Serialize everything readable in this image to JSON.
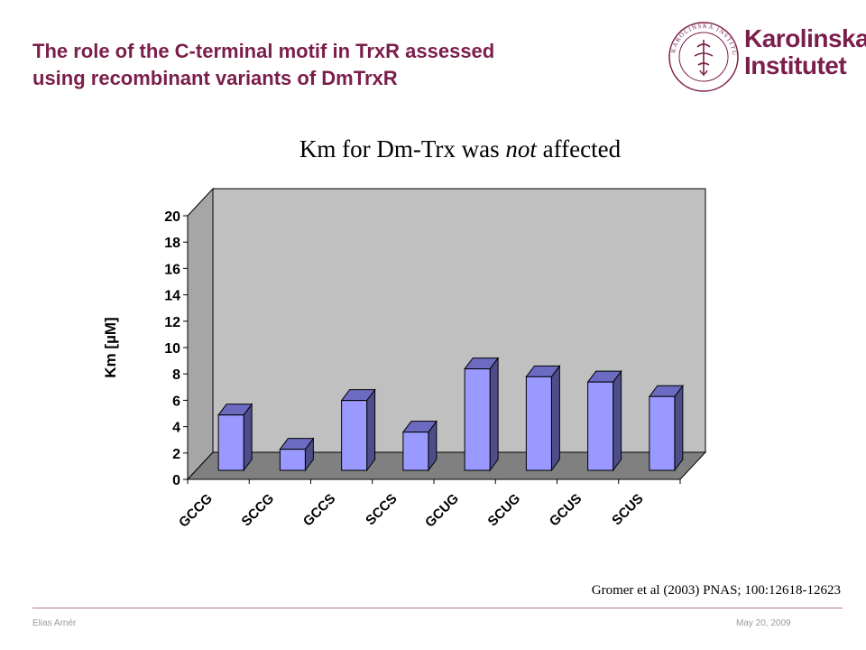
{
  "header": {
    "title_line1": "The role of the C-terminal motif in TrxR assessed",
    "title_line2": "using recombinant variants of DmTrxR"
  },
  "logo": {
    "name_line1": "Karolinska",
    "name_line2": "Institutet",
    "seal_text": "KAROLINSKA INSTITUTET · ANNO 1810",
    "color": "#7a1e4b"
  },
  "slide": {
    "subtitle_prefix": "Km for Dm-Trx was ",
    "subtitle_emph": "not",
    "subtitle_suffix": " affected"
  },
  "chart_data": {
    "type": "bar",
    "style": "3d",
    "categories": [
      "GCCG",
      "SCCG",
      "GCCS",
      "SCCS",
      "GCUG",
      "SCUG",
      "GCUS",
      "SCUS"
    ],
    "values": [
      4.2,
      1.6,
      5.3,
      2.9,
      7.7,
      7.1,
      6.7,
      5.6
    ],
    "ylabel": "Km [µM]",
    "ylim": [
      0,
      20
    ],
    "yticks": [
      0,
      2,
      4,
      6,
      8,
      10,
      12,
      14,
      16,
      18,
      20
    ],
    "grid": false,
    "legend": "none",
    "bar_color": "#9999ff",
    "wall_color": "#c0c0c0"
  },
  "citation": "Gromer et al (2003) PNAS; 100:12618-12623",
  "footer": {
    "author": "Elias Arnér",
    "date": "May 20, 2009"
  }
}
